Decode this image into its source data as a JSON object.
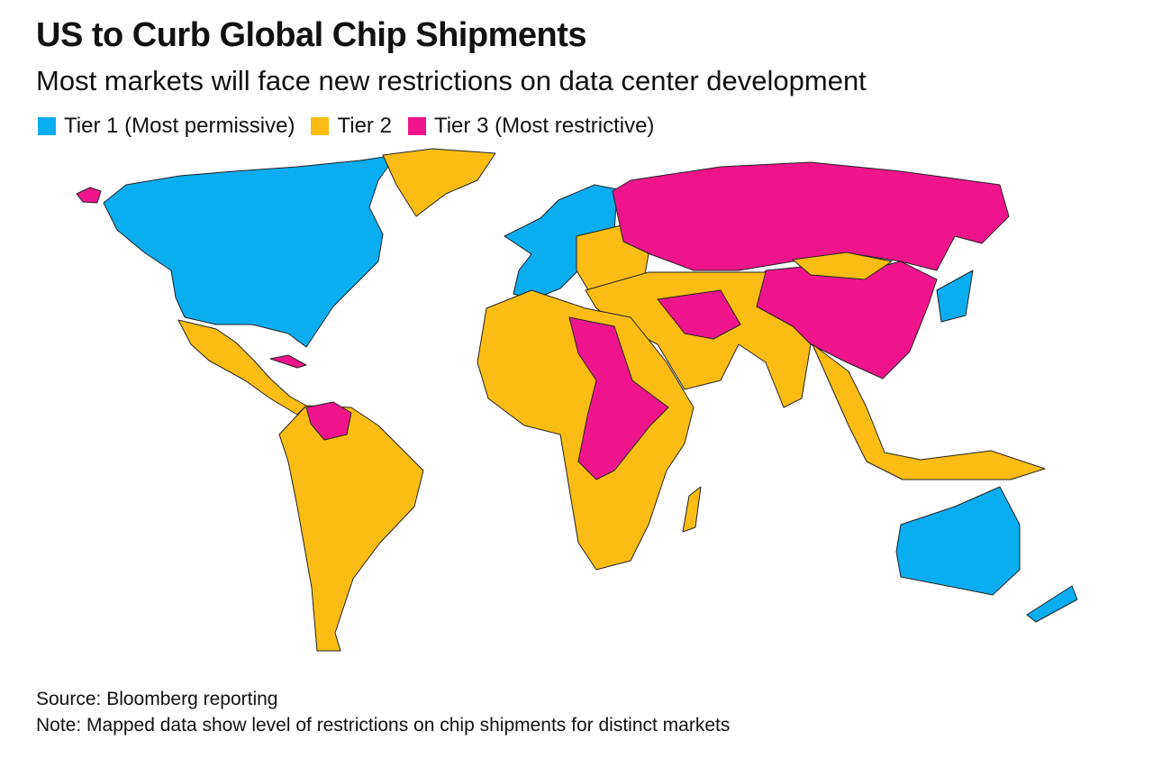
{
  "title": "US to Curb Global Chip Shipments",
  "subtitle": "Most markets will face new restrictions on data center development",
  "legend": [
    {
      "label": "Tier 1 (Most permissive)",
      "color": "#0aadf0"
    },
    {
      "label": "Tier 2",
      "color": "#fbbd13"
    },
    {
      "label": "Tier 3 (Most restrictive)",
      "color": "#f0148c"
    }
  ],
  "source": "Source: Bloomberg reporting",
  "note": "Note: Mapped data show level of restrictions on chip shipments for distinct markets"
}
